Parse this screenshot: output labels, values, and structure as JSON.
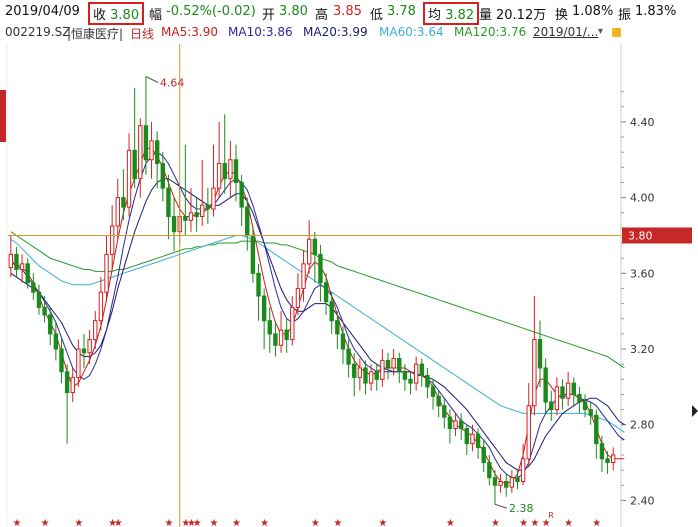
{
  "quote": {
    "date": "2019/04/09",
    "close_label": "收",
    "close_value": "3.80",
    "change_label": "幅",
    "change_value": "-0.52%(-0.02)",
    "open_label": "开",
    "open_value": "3.80",
    "high_label": "高",
    "high_value": "3.85",
    "low_label": "低",
    "low_value": "3.78",
    "avg_label": "均",
    "avg_value": "3.82",
    "volume_label": "量",
    "volume_value": "20.12万",
    "turnover_label": "换",
    "turnover_value": "1.08%",
    "amplitude_label": "振",
    "amplitude_value": "1.83%"
  },
  "ma_bar": {
    "symbol": "002219.SZ",
    "name": "|恒康医疗|",
    "period": "日线",
    "ma5": "MA5:3.90",
    "ma10": "MA10:3.86",
    "ma20": "MA20:3.99",
    "ma60": "MA60:3.64",
    "ma120": "MA120:3.76",
    "date_select": "2019/01/..."
  },
  "colors": {
    "up": "#d62020",
    "down": "#1a8a1a",
    "ma5": "#c81e1e",
    "ma10": "#2a2aa0",
    "ma20": "#1c1c70",
    "ma60": "#3bb0d8",
    "ma120": "#2a9a2a",
    "crosshair": "#d49a2a",
    "price_tag": "#c62828"
  },
  "chart_data": {
    "type": "candlestick",
    "y_ticks": [
      "4.40",
      "4.00",
      "3.60",
      "3.20",
      "2.80",
      "2.40"
    ],
    "ylim": [
      2.36,
      4.78
    ],
    "current_price_tag": "3.80",
    "high_annotation": "4.64",
    "low_annotation": "2.38",
    "marker_label": "R",
    "candles": [
      [
        3.63,
        3.7,
        3.8,
        3.58
      ],
      [
        3.7,
        3.62,
        3.74,
        3.58
      ],
      [
        3.62,
        3.65,
        3.7,
        3.55
      ],
      [
        3.65,
        3.55,
        3.68,
        3.52
      ],
      [
        3.55,
        3.5,
        3.6,
        3.46
      ],
      [
        3.5,
        3.42,
        3.54,
        3.38
      ],
      [
        3.42,
        3.38,
        3.48,
        3.34
      ],
      [
        3.38,
        3.28,
        3.42,
        3.22
      ],
      [
        3.28,
        3.2,
        3.34,
        3.14
      ],
      [
        3.2,
        3.08,
        3.26,
        3.02
      ],
      [
        3.08,
        2.97,
        3.12,
        2.7
      ],
      [
        2.97,
        3.05,
        3.1,
        2.92
      ],
      [
        3.05,
        3.2,
        3.25,
        3.0
      ],
      [
        3.2,
        3.18,
        3.28,
        3.1
      ],
      [
        3.18,
        3.25,
        3.3,
        3.12
      ],
      [
        3.25,
        3.35,
        3.4,
        3.2
      ],
      [
        3.35,
        3.5,
        3.58,
        3.3
      ],
      [
        3.5,
        3.7,
        3.8,
        3.45
      ],
      [
        3.7,
        3.85,
        3.96,
        3.62
      ],
      [
        3.85,
        4.0,
        4.1,
        3.78
      ],
      [
        4.0,
        3.95,
        4.15,
        3.88
      ],
      [
        3.95,
        4.25,
        4.34,
        3.9
      ],
      [
        4.25,
        4.1,
        4.58,
        4.05
      ],
      [
        4.1,
        4.38,
        4.42,
        4.0
      ],
      [
        4.38,
        4.2,
        4.64,
        4.12
      ],
      [
        4.2,
        4.3,
        4.4,
        4.1
      ],
      [
        4.3,
        4.18,
        4.35,
        4.05
      ],
      [
        4.18,
        4.05,
        4.24,
        3.98
      ],
      [
        4.05,
        3.9,
        4.12,
        3.78
      ],
      [
        3.9,
        3.82,
        4.0,
        3.72
      ],
      [
        3.82,
        3.9,
        4.05,
        3.75
      ],
      [
        3.9,
        3.88,
        4.28,
        3.8
      ],
      [
        3.88,
        3.92,
        4.05,
        3.82
      ],
      [
        3.92,
        3.9,
        4.0,
        3.82
      ],
      [
        3.9,
        3.96,
        4.2,
        3.85
      ],
      [
        3.96,
        3.94,
        4.05,
        3.86
      ],
      [
        3.94,
        4.05,
        4.28,
        3.9
      ],
      [
        4.05,
        4.18,
        4.4,
        4.0
      ],
      [
        4.18,
        4.1,
        4.44,
        4.02
      ],
      [
        4.1,
        4.2,
        4.3,
        4.0
      ],
      [
        4.2,
        4.08,
        4.28,
        3.98
      ],
      [
        4.08,
        3.95,
        4.12,
        3.85
      ],
      [
        3.95,
        3.8,
        4.0,
        3.72
      ],
      [
        3.8,
        3.6,
        3.85,
        3.55
      ],
      [
        3.6,
        3.48,
        3.65,
        3.35
      ],
      [
        3.48,
        3.35,
        3.52,
        3.2
      ],
      [
        3.35,
        3.28,
        3.42,
        3.18
      ],
      [
        3.28,
        3.22,
        3.34,
        3.16
      ],
      [
        3.22,
        3.3,
        3.4,
        3.18
      ],
      [
        3.3,
        3.25,
        3.36,
        3.18
      ],
      [
        3.25,
        3.42,
        3.48,
        3.22
      ],
      [
        3.42,
        3.52,
        3.6,
        3.38
      ],
      [
        3.52,
        3.65,
        3.72,
        3.45
      ],
      [
        3.65,
        3.78,
        3.88,
        3.6
      ],
      [
        3.78,
        3.7,
        3.82,
        3.55
      ],
      [
        3.7,
        3.55,
        3.75,
        3.45
      ],
      [
        3.55,
        3.45,
        3.6,
        3.38
      ],
      [
        3.45,
        3.35,
        3.5,
        3.28
      ],
      [
        3.35,
        3.28,
        3.4,
        3.2
      ],
      [
        3.28,
        3.2,
        3.32,
        3.12
      ],
      [
        3.2,
        3.12,
        3.25,
        3.05
      ],
      [
        3.12,
        3.05,
        3.18,
        2.95
      ],
      [
        3.05,
        3.1,
        3.15,
        2.98
      ],
      [
        3.1,
        3.02,
        3.14,
        2.96
      ],
      [
        3.02,
        3.08,
        3.12,
        2.98
      ],
      [
        3.08,
        3.04,
        3.12,
        2.98
      ],
      [
        3.04,
        3.14,
        3.2,
        3.0
      ],
      [
        3.14,
        3.1,
        3.18,
        3.04
      ],
      [
        3.1,
        3.15,
        3.2,
        3.06
      ],
      [
        3.15,
        3.08,
        3.18,
        3.02
      ],
      [
        3.08,
        3.04,
        3.12,
        2.98
      ],
      [
        3.04,
        3.02,
        3.08,
        2.96
      ],
      [
        3.02,
        3.12,
        3.16,
        2.98
      ],
      [
        3.12,
        3.06,
        3.15,
        3.0
      ],
      [
        3.06,
        3.0,
        3.1,
        2.94
      ],
      [
        3.0,
        2.95,
        3.04,
        2.88
      ],
      [
        2.95,
        2.9,
        2.98,
        2.84
      ],
      [
        2.9,
        2.84,
        2.94,
        2.78
      ],
      [
        2.84,
        2.78,
        2.88,
        2.7
      ],
      [
        2.78,
        2.82,
        2.86,
        2.74
      ],
      [
        2.82,
        2.78,
        2.86,
        2.72
      ],
      [
        2.78,
        2.7,
        2.8,
        2.64
      ],
      [
        2.7,
        2.75,
        2.8,
        2.66
      ],
      [
        2.75,
        2.68,
        2.78,
        2.62
      ],
      [
        2.68,
        2.6,
        2.72,
        2.55
      ],
      [
        2.6,
        2.52,
        2.64,
        2.48
      ],
      [
        2.52,
        2.48,
        2.56,
        2.38
      ],
      [
        2.48,
        2.5,
        2.54,
        2.44
      ],
      [
        2.5,
        2.47,
        2.54,
        2.42
      ],
      [
        2.47,
        2.52,
        2.56,
        2.44
      ],
      [
        2.52,
        2.5,
        2.56,
        2.46
      ],
      [
        2.5,
        2.62,
        2.7,
        2.48
      ],
      [
        2.62,
        2.9,
        3.02,
        2.58
      ],
      [
        2.9,
        3.25,
        3.48,
        2.85
      ],
      [
        3.25,
        3.1,
        3.35,
        3.0
      ],
      [
        3.1,
        2.92,
        3.15,
        2.86
      ],
      [
        2.92,
        2.88,
        2.98,
        2.82
      ],
      [
        2.88,
        3.0,
        3.05,
        2.85
      ],
      [
        3.0,
        2.94,
        3.04,
        2.88
      ],
      [
        2.94,
        3.02,
        3.08,
        2.9
      ],
      [
        3.02,
        2.96,
        3.05,
        2.9
      ],
      [
        2.96,
        2.92,
        3.0,
        2.86
      ],
      [
        2.92,
        2.88,
        2.96,
        2.84
      ],
      [
        2.88,
        2.85,
        2.92,
        2.8
      ],
      [
        2.85,
        2.7,
        2.88,
        2.62
      ],
      [
        2.7,
        2.62,
        2.74,
        2.55
      ],
      [
        2.62,
        2.6,
        2.66,
        2.54
      ],
      [
        2.6,
        2.64,
        2.68,
        2.56
      ]
    ],
    "ma": [
      {
        "name": "MA120",
        "values": [
          3.82,
          3.8,
          3.78,
          3.76,
          3.74,
          3.72,
          3.7,
          3.68,
          3.67,
          3.66,
          3.65,
          3.64,
          3.63,
          3.62,
          3.62,
          3.61,
          3.61,
          3.61,
          3.61,
          3.62,
          3.62,
          3.63,
          3.64,
          3.65,
          3.66,
          3.67,
          3.68,
          3.69,
          3.7,
          3.71,
          3.72,
          3.73,
          3.73,
          3.74,
          3.74,
          3.75,
          3.75,
          3.76,
          3.76,
          3.76,
          3.76,
          3.77,
          3.77,
          3.77,
          3.77,
          3.76,
          3.76,
          3.76,
          3.75,
          3.75,
          3.74,
          3.73,
          3.72,
          3.71,
          3.7,
          3.68,
          3.67,
          3.66,
          3.64,
          3.63,
          3.62,
          3.61,
          3.6,
          3.59,
          3.58,
          3.57,
          3.56,
          3.55,
          3.54,
          3.53,
          3.52,
          3.51,
          3.5,
          3.49,
          3.48,
          3.47,
          3.46,
          3.45,
          3.44,
          3.43,
          3.42,
          3.41,
          3.4,
          3.39,
          3.38,
          3.37,
          3.36,
          3.35,
          3.34,
          3.33,
          3.32,
          3.31,
          3.3,
          3.29,
          3.28,
          3.27,
          3.26,
          3.25,
          3.24,
          3.23,
          3.22,
          3.21,
          3.2,
          3.19,
          3.18,
          3.17,
          3.16,
          3.14,
          3.12,
          3.1
        ]
      },
      {
        "name": "MA60",
        "values": [
          3.78,
          3.76,
          3.73,
          3.7,
          3.67,
          3.64,
          3.62,
          3.6,
          3.58,
          3.56,
          3.55,
          3.54,
          3.54,
          3.54,
          3.54,
          3.55,
          3.56,
          3.57,
          3.58,
          3.59,
          3.6,
          3.61,
          3.62,
          3.63,
          3.64,
          3.65,
          3.66,
          3.67,
          3.68,
          3.69,
          3.7,
          3.71,
          3.72,
          3.73,
          3.74,
          3.75,
          3.76,
          3.77,
          3.78,
          3.79,
          3.8,
          3.8,
          3.79,
          3.78,
          3.76,
          3.74,
          3.72,
          3.7,
          3.68,
          3.66,
          3.64,
          3.62,
          3.6,
          3.58,
          3.56,
          3.54,
          3.52,
          3.5,
          3.48,
          3.46,
          3.44,
          3.42,
          3.4,
          3.38,
          3.36,
          3.34,
          3.32,
          3.3,
          3.28,
          3.26,
          3.24,
          3.22,
          3.2,
          3.18,
          3.16,
          3.14,
          3.12,
          3.1,
          3.08,
          3.06,
          3.04,
          3.02,
          3.0,
          2.98,
          2.96,
          2.94,
          2.92,
          2.9,
          2.89,
          2.88,
          2.87,
          2.86,
          2.86,
          2.86,
          2.86,
          2.86,
          2.86,
          2.86,
          2.86,
          2.86,
          2.86,
          2.86,
          2.86,
          2.85,
          2.84,
          2.83,
          2.82,
          2.8,
          2.78,
          2.76
        ]
      },
      {
        "name": "MA20",
        "values": [
          3.6,
          3.58,
          3.56,
          3.54,
          3.52,
          3.5,
          3.46,
          3.42,
          3.38,
          3.34,
          3.28,
          3.22,
          3.18,
          3.16,
          3.16,
          3.18,
          3.22,
          3.3,
          3.4,
          3.52,
          3.62,
          3.72,
          3.82,
          3.9,
          3.98,
          4.04,
          4.08,
          4.1,
          4.1,
          4.08,
          4.06,
          4.04,
          4.02,
          4.0,
          3.98,
          3.96,
          3.96,
          3.96,
          3.98,
          4.0,
          4.02,
          4.02,
          3.98,
          3.92,
          3.84,
          3.76,
          3.68,
          3.6,
          3.52,
          3.46,
          3.42,
          3.4,
          3.4,
          3.42,
          3.44,
          3.44,
          3.44,
          3.42,
          3.38,
          3.34,
          3.3,
          3.26,
          3.22,
          3.18,
          3.14,
          3.12,
          3.1,
          3.09,
          3.08,
          3.08,
          3.08,
          3.08,
          3.07,
          3.06,
          3.05,
          3.04,
          3.02,
          3.0,
          2.97,
          2.94,
          2.91,
          2.88,
          2.84,
          2.8,
          2.76,
          2.72,
          2.68,
          2.64,
          2.6,
          2.58,
          2.56,
          2.56,
          2.58,
          2.62,
          2.68,
          2.74,
          2.78,
          2.82,
          2.86,
          2.88,
          2.9,
          2.92,
          2.93,
          2.94,
          2.94,
          2.92,
          2.9,
          2.86,
          2.82,
          2.8
        ]
      },
      {
        "name": "MA10",
        "values": [
          3.66,
          3.64,
          3.62,
          3.58,
          3.54,
          3.5,
          3.45,
          3.4,
          3.34,
          3.26,
          3.18,
          3.1,
          3.06,
          3.04,
          3.06,
          3.12,
          3.2,
          3.3,
          3.44,
          3.58,
          3.74,
          3.88,
          4.0,
          4.1,
          4.18,
          4.22,
          4.24,
          4.22,
          4.18,
          4.12,
          4.06,
          4.0,
          3.96,
          3.94,
          3.94,
          3.94,
          3.96,
          4.0,
          4.04,
          4.08,
          4.1,
          4.08,
          4.04,
          3.96,
          3.86,
          3.76,
          3.64,
          3.52,
          3.42,
          3.36,
          3.34,
          3.36,
          3.4,
          3.46,
          3.52,
          3.54,
          3.52,
          3.48,
          3.42,
          3.34,
          3.26,
          3.2,
          3.16,
          3.12,
          3.1,
          3.08,
          3.08,
          3.08,
          3.08,
          3.08,
          3.08,
          3.08,
          3.07,
          3.06,
          3.04,
          3.02,
          2.98,
          2.94,
          2.9,
          2.86,
          2.82,
          2.8,
          2.78,
          2.75,
          2.72,
          2.68,
          2.62,
          2.57,
          2.54,
          2.52,
          2.52,
          2.54,
          2.6,
          2.7,
          2.8,
          2.86,
          2.9,
          2.94,
          2.96,
          2.96,
          2.96,
          2.94,
          2.93,
          2.92,
          2.9,
          2.86,
          2.82,
          2.78,
          2.74,
          2.72
        ]
      },
      {
        "name": "MA5",
        "values": [
          3.66,
          3.65,
          3.63,
          3.6,
          3.55,
          3.48,
          3.4,
          3.34,
          3.28,
          3.18,
          3.08,
          3.0,
          3.02,
          3.08,
          3.14,
          3.22,
          3.32,
          3.46,
          3.62,
          3.78,
          3.92,
          4.02,
          4.1,
          4.18,
          4.26,
          4.26,
          4.22,
          4.16,
          4.08,
          4.0,
          3.94,
          3.9,
          3.9,
          3.91,
          3.92,
          3.94,
          3.98,
          4.06,
          4.12,
          4.14,
          4.12,
          4.06,
          3.98,
          3.84,
          3.7,
          3.56,
          3.44,
          3.34,
          3.28,
          3.28,
          3.32,
          3.42,
          3.52,
          3.62,
          3.66,
          3.64,
          3.58,
          3.48,
          3.38,
          3.28,
          3.2,
          3.14,
          3.1,
          3.08,
          3.06,
          3.08,
          3.1,
          3.1,
          3.1,
          3.1,
          3.1,
          3.08,
          3.06,
          3.06,
          3.04,
          3.0,
          2.94,
          2.88,
          2.84,
          2.8,
          2.78,
          2.76,
          2.74,
          2.7,
          2.66,
          2.6,
          2.54,
          2.5,
          2.49,
          2.5,
          2.54,
          2.64,
          2.8,
          2.96,
          3.04,
          3.04,
          3.0,
          2.96,
          2.94,
          2.96,
          2.96,
          2.94,
          2.92,
          2.86,
          2.78,
          2.7,
          2.64,
          2.62,
          2.62,
          2.62
        ]
      }
    ]
  }
}
